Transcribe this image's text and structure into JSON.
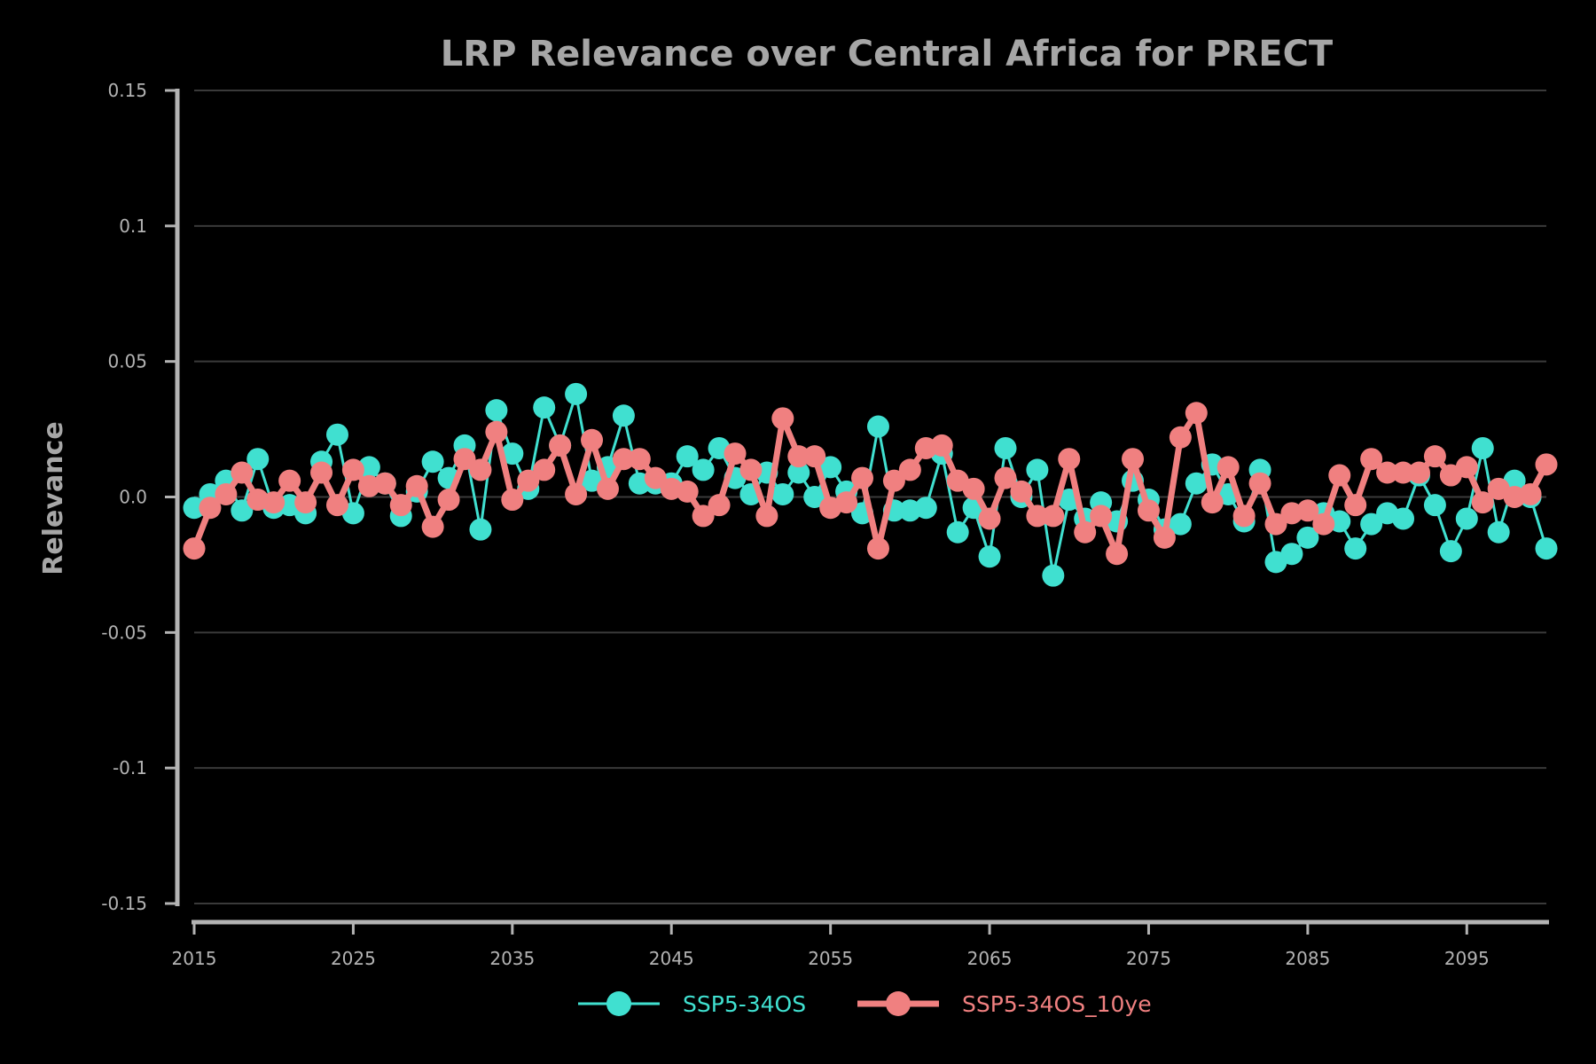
{
  "chart_data": {
    "type": "line",
    "title": "LRP Relevance over Central Africa for PRECT",
    "xlabel": "",
    "ylabel": "Relevance",
    "xlim": [
      2015,
      2100
    ],
    "ylim": [
      -0.15,
      0.15
    ],
    "x_ticks": [
      2015,
      2025,
      2035,
      2045,
      2055,
      2065,
      2075,
      2085,
      2095
    ],
    "x_tick_labels": [
      "2015",
      "2025",
      "2035",
      "2045",
      "2055",
      "2065",
      "2075",
      "2085",
      "2095"
    ],
    "y_ticks": [
      0.15,
      0.1,
      0.05,
      0.0,
      -0.05,
      -0.1,
      -0.15
    ],
    "y_tick_labels": [
      "0.15",
      "0.1",
      "0.05",
      "0.0",
      "-0.05",
      "-0.1",
      "-0.15"
    ],
    "grid": "horizontal",
    "legend_position": "bottom-center",
    "x": [
      2015,
      2016,
      2017,
      2018,
      2019,
      2020,
      2021,
      2022,
      2023,
      2024,
      2025,
      2026,
      2027,
      2028,
      2029,
      2030,
      2031,
      2032,
      2033,
      2034,
      2035,
      2036,
      2037,
      2038,
      2039,
      2040,
      2041,
      2042,
      2043,
      2044,
      2045,
      2046,
      2047,
      2048,
      2049,
      2050,
      2051,
      2052,
      2053,
      2054,
      2055,
      2056,
      2057,
      2058,
      2059,
      2060,
      2061,
      2062,
      2063,
      2064,
      2065,
      2066,
      2067,
      2068,
      2069,
      2070,
      2071,
      2072,
      2073,
      2074,
      2075,
      2076,
      2077,
      2078,
      2079,
      2080,
      2081,
      2082,
      2083,
      2084,
      2085,
      2086,
      2087,
      2088,
      2089,
      2090,
      2091,
      2092,
      2093,
      2094,
      2095,
      2096,
      2097,
      2098,
      2099,
      2100
    ],
    "series": [
      {
        "name": "SSP5-34OS",
        "color": "#40e0d0",
        "values": [
          -0.004,
          0.001,
          0.006,
          -0.005,
          0.014,
          -0.004,
          -0.003,
          -0.006,
          0.013,
          0.023,
          -0.006,
          0.011,
          0.005,
          -0.007,
          0.002,
          0.013,
          0.007,
          0.019,
          -0.012,
          0.032,
          0.016,
          0.003,
          0.033,
          0.019,
          0.038,
          0.006,
          0.011,
          0.03,
          0.005,
          0.005,
          0.005,
          0.015,
          0.01,
          0.018,
          0.007,
          0.001,
          0.009,
          0.001,
          0.009,
          0.0,
          0.011,
          0.002,
          -0.006,
          0.026,
          -0.005,
          -0.005,
          -0.004,
          0.016,
          -0.013,
          -0.004,
          -0.022,
          0.018,
          0.0,
          0.01,
          -0.029,
          -0.001,
          -0.008,
          -0.002,
          -0.009,
          0.006,
          -0.001,
          -0.012,
          -0.01,
          0.005,
          0.012,
          0.001,
          -0.009,
          0.01,
          -0.024,
          -0.021,
          -0.015,
          -0.006,
          -0.009,
          -0.019,
          -0.01,
          -0.006,
          -0.008,
          0.008,
          -0.003,
          -0.02,
          -0.008,
          0.018,
          -0.013,
          0.006,
          0.0,
          -0.019
        ]
      },
      {
        "name": "SSP5-34OS_10ye",
        "color": "#f08080",
        "values": [
          -0.019,
          -0.004,
          0.001,
          0.009,
          -0.001,
          -0.002,
          0.006,
          -0.002,
          0.009,
          -0.003,
          0.01,
          0.004,
          0.005,
          -0.003,
          0.004,
          -0.011,
          -0.001,
          0.014,
          0.01,
          0.024,
          -0.001,
          0.006,
          0.01,
          0.019,
          0.001,
          0.021,
          0.003,
          0.014,
          0.014,
          0.007,
          0.003,
          0.002,
          -0.007,
          -0.003,
          0.016,
          0.01,
          -0.007,
          0.029,
          0.015,
          0.015,
          -0.004,
          -0.002,
          0.007,
          -0.019,
          0.006,
          0.01,
          0.018,
          0.019,
          0.006,
          0.003,
          -0.008,
          0.007,
          0.002,
          -0.007,
          -0.007,
          0.014,
          -0.013,
          -0.007,
          -0.021,
          0.014,
          -0.005,
          -0.015,
          0.022,
          0.031,
          -0.002,
          0.011,
          -0.007,
          0.005,
          -0.01,
          -0.006,
          -0.005,
          -0.01,
          0.008,
          -0.003,
          0.014,
          0.009,
          0.009,
          0.009,
          0.015,
          0.008,
          0.011,
          -0.002,
          0.003,
          0.0,
          0.001,
          0.012
        ]
      }
    ]
  }
}
